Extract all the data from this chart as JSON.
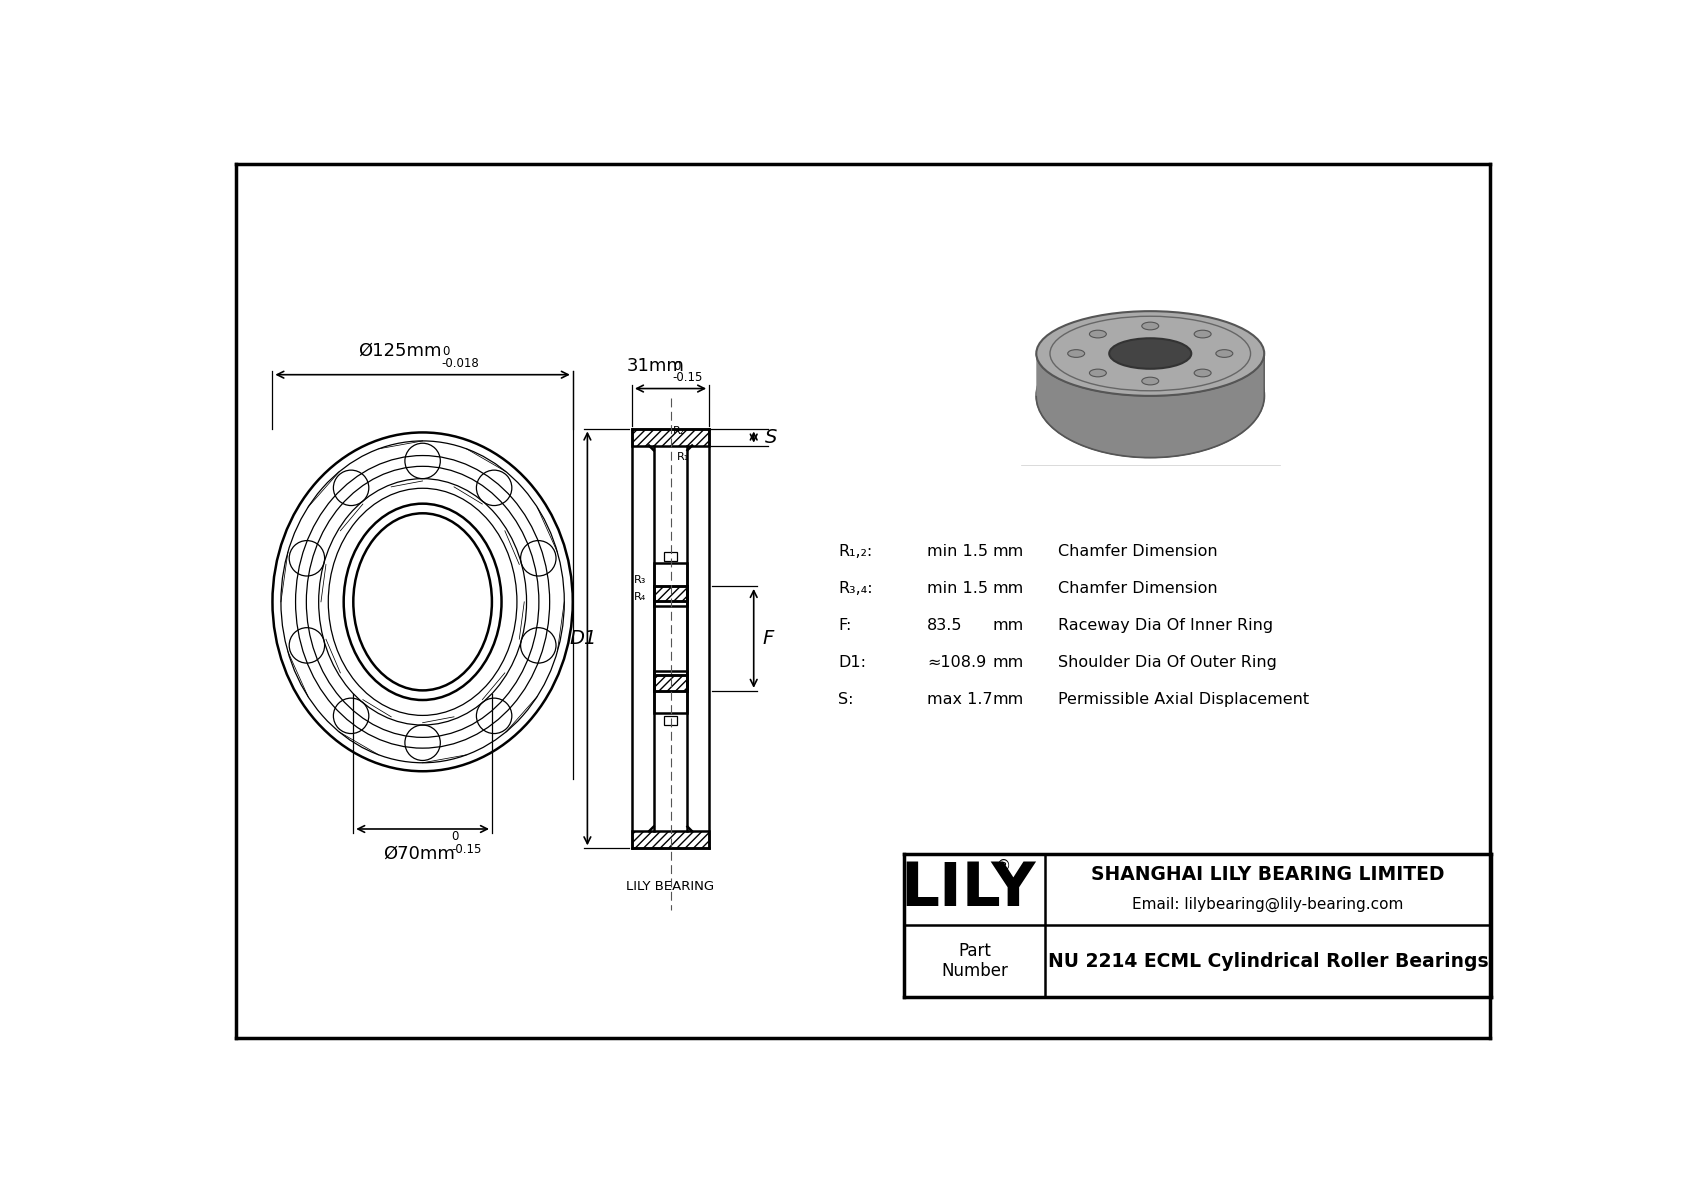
{
  "bg_color": "#ffffff",
  "line_color": "#000000",
  "company": "SHANGHAI LILY BEARING LIMITED",
  "email": "Email: lilybearing@lily-bearing.com",
  "part_label": "Part\nNumber",
  "part_number": "NU 2214 ECML Cylindrical Roller Bearings",
  "lily_text": "LILY",
  "watermark": "LILY BEARING",
  "dims": {
    "R12_label": "R₁,₂:",
    "R12_val": "min 1.5",
    "R12_unit": "mm",
    "R12_desc": "Chamfer Dimension",
    "R34_label": "R₃,₄:",
    "R34_val": "min 1.5",
    "R34_unit": "mm",
    "R34_desc": "Chamfer Dimension",
    "F_label": "F:",
    "F_val": "83.5",
    "F_unit": "mm",
    "F_desc": "Raceway Dia Of Inner Ring",
    "D1_label": "D1:",
    "D1_val": "≈108.9",
    "D1_unit": "mm",
    "D1_desc": "Shoulder Dia Of Outer Ring",
    "S_label": "S:",
    "S_val": "max 1.7",
    "S_unit": "mm",
    "S_desc": "Permissible Axial Displacement"
  },
  "outer_dim_label": "Ø125mm",
  "outer_dim_tol_top": "0",
  "outer_dim_tol_bot": "-0.018",
  "inner_dim_label": "Ø70mm",
  "inner_dim_tol_top": "0",
  "inner_dim_tol_bot": "-0.15",
  "width_dim_label": "31mm",
  "width_dim_tol_top": "0",
  "width_dim_tol_bot": "-0.15"
}
